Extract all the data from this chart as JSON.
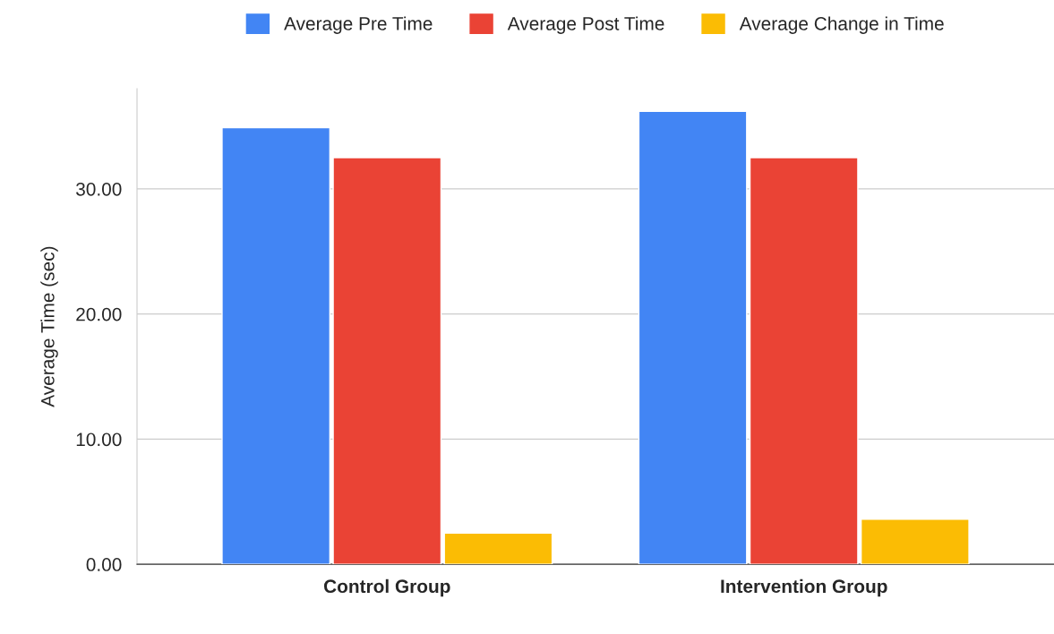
{
  "chart_data": {
    "type": "bar",
    "ylabel": "Average Time (sec)",
    "categories": [
      "Control Group",
      "Intervention Group"
    ],
    "series": [
      {
        "name": "Average Pre Time",
        "color": "#4285f4",
        "values": [
          34.9,
          36.2
        ]
      },
      {
        "name": "Average Post Time",
        "color": "#ea4335",
        "values": [
          32.5,
          32.5
        ]
      },
      {
        "name": "Average Change in Time",
        "color": "#fbbc04",
        "values": [
          2.5,
          3.6
        ]
      }
    ],
    "ylim": [
      0,
      38
    ],
    "yticks": [
      {
        "value": 0,
        "label": "0.00"
      },
      {
        "value": 10,
        "label": "10.00"
      },
      {
        "value": 20,
        "label": "20.00"
      },
      {
        "value": 30,
        "label": "30.00"
      }
    ],
    "grid": "y",
    "legend": "top"
  }
}
